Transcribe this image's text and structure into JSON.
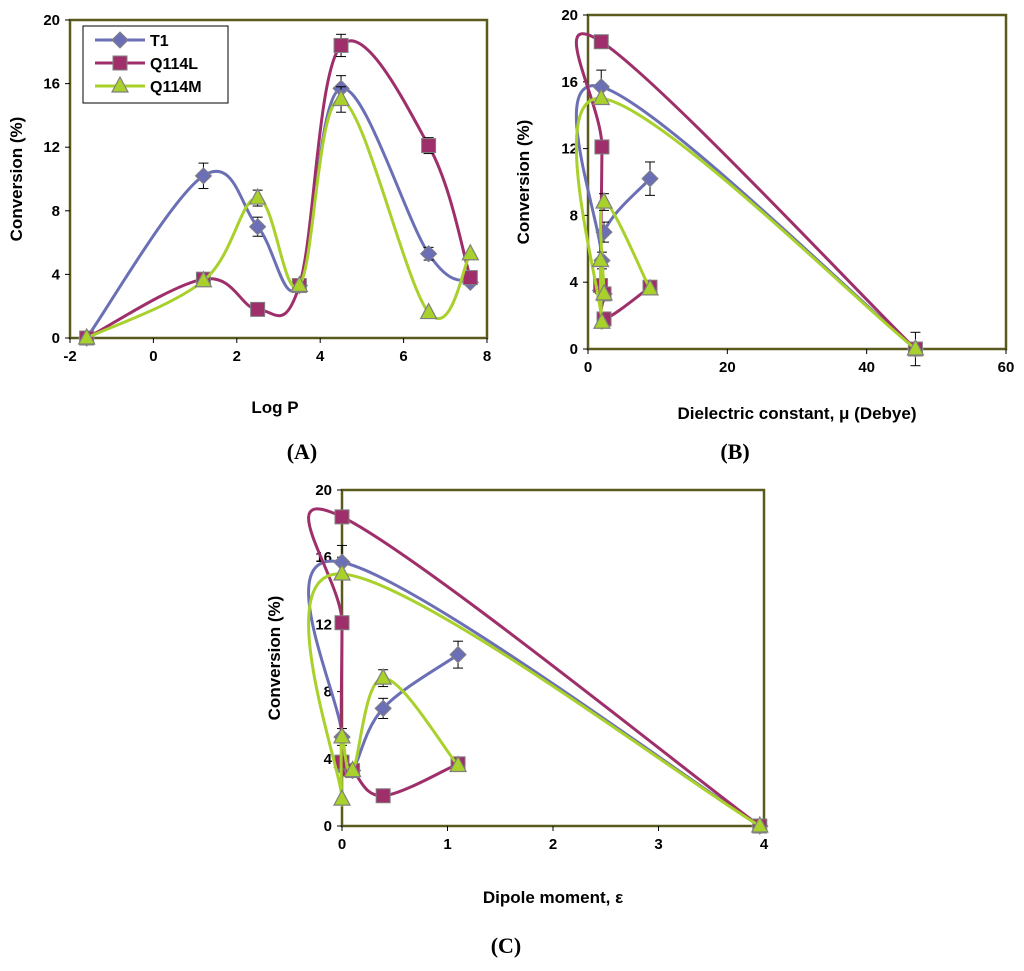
{
  "colors": {
    "T1": "#6b6fb5",
    "Q114L": "#9e2f6a",
    "Q114M": "#a9d12b",
    "frame": "#5b5a1e",
    "marker_stroke": "#808080"
  },
  "chart_data": [
    {
      "type": "line",
      "panel_label": "(A)",
      "xlabel": "Log P",
      "ylabel": "Conversion (%)",
      "xlim": [
        -2,
        8
      ],
      "ylim": [
        0,
        20
      ],
      "xticks": [
        -2,
        0,
        2,
        4,
        6,
        8
      ],
      "yticks": [
        0,
        4,
        8,
        12,
        16,
        20
      ],
      "legend": {
        "placement": "top-left",
        "entries": [
          "T1",
          "Q114L",
          "Q114M"
        ]
      },
      "series": [
        {
          "name": "T1",
          "marker": "diamond",
          "x": [
            -1.6,
            1.2,
            2.5,
            3.5,
            4.5,
            6.6,
            7.6
          ],
          "y": [
            0,
            10.2,
            7.0,
            3.3,
            15.7,
            5.3,
            3.5
          ],
          "err": [
            0,
            0.8,
            0.6,
            0,
            0.8,
            0.4,
            0
          ]
        },
        {
          "name": "Q114L",
          "marker": "square",
          "x": [
            -1.6,
            1.2,
            2.5,
            3.5,
            4.5,
            6.6,
            7.6
          ],
          "y": [
            0,
            3.7,
            1.8,
            3.3,
            18.4,
            12.1,
            3.8
          ],
          "err": [
            0,
            0,
            0,
            0,
            0.7,
            0.5,
            0
          ]
        },
        {
          "name": "Q114M",
          "marker": "triangle",
          "x": [
            -1.6,
            1.2,
            2.5,
            3.5,
            4.5,
            6.6,
            7.6
          ],
          "y": [
            0,
            3.6,
            8.8,
            3.3,
            15.0,
            1.6,
            5.3
          ],
          "err": [
            0,
            0,
            0.5,
            0,
            0.8,
            0,
            0
          ]
        }
      ]
    },
    {
      "type": "line",
      "panel_label": "(B)",
      "xlabel": "Dielectric constant, μ (Debye)",
      "ylabel": "Conversion (%)",
      "xlim": [
        0,
        60
      ],
      "ylim": [
        0,
        20
      ],
      "xticks": [
        0,
        20,
        40,
        60
      ],
      "yticks": [
        0,
        4,
        8,
        12,
        16,
        20
      ],
      "series": [
        {
          "name": "T1",
          "marker": "diamond",
          "x": [
            47,
            1.9,
            2.0,
            1.8,
            2.3,
            2.3,
            8.9
          ],
          "y": [
            0,
            15.7,
            5.3,
            3.5,
            3.3,
            7.0,
            10.2
          ],
          "err": [
            1.0,
            1.0,
            0.5,
            0,
            0,
            0.6,
            1.0
          ]
        },
        {
          "name": "Q114L",
          "marker": "square",
          "x": [
            47,
            1.9,
            2.0,
            1.8,
            2.3,
            2.3,
            8.9
          ],
          "y": [
            0,
            18.4,
            12.1,
            3.8,
            3.3,
            1.8,
            3.7
          ],
          "err": [
            0,
            0,
            0,
            0,
            0,
            0,
            0
          ]
        },
        {
          "name": "Q114M",
          "marker": "triangle",
          "x": [
            47,
            1.9,
            2.0,
            1.8,
            2.3,
            2.3,
            8.9
          ],
          "y": [
            0,
            15.0,
            1.6,
            5.3,
            3.3,
            8.8,
            3.6
          ],
          "err": [
            0,
            0,
            0,
            0,
            0,
            0.5,
            0
          ]
        }
      ]
    },
    {
      "type": "line",
      "panel_label": "(C)",
      "xlabel": "Dipole moment, ε",
      "ylabel": "Conversion (%)",
      "xlim": [
        0,
        4
      ],
      "ylim": [
        0,
        20
      ],
      "xticks": [
        0,
        1,
        2,
        3,
        4
      ],
      "yticks": [
        0,
        4,
        8,
        12,
        16,
        20
      ],
      "series": [
        {
          "name": "T1",
          "marker": "diamond",
          "x": [
            3.96,
            0,
            0,
            0,
            0.1,
            0.39,
            1.1
          ],
          "y": [
            0,
            15.7,
            5.3,
            3.5,
            3.3,
            7.0,
            10.2
          ],
          "err": [
            0,
            1.0,
            0.5,
            0,
            0,
            0.6,
            0.8
          ]
        },
        {
          "name": "Q114L",
          "marker": "square",
          "x": [
            3.96,
            0,
            0,
            0,
            0.1,
            0.39,
            1.1
          ],
          "y": [
            0,
            18.4,
            12.1,
            3.8,
            3.3,
            1.8,
            3.7
          ],
          "err": [
            0,
            0,
            0,
            0,
            0,
            0,
            0
          ]
        },
        {
          "name": "Q114M",
          "marker": "triangle",
          "x": [
            3.96,
            0,
            0,
            0,
            0.1,
            0.39,
            1.1
          ],
          "y": [
            0,
            15.0,
            1.6,
            5.3,
            3.3,
            8.8,
            3.6
          ],
          "err": [
            0,
            0,
            0,
            0,
            0,
            0.5,
            0
          ]
        }
      ]
    }
  ]
}
